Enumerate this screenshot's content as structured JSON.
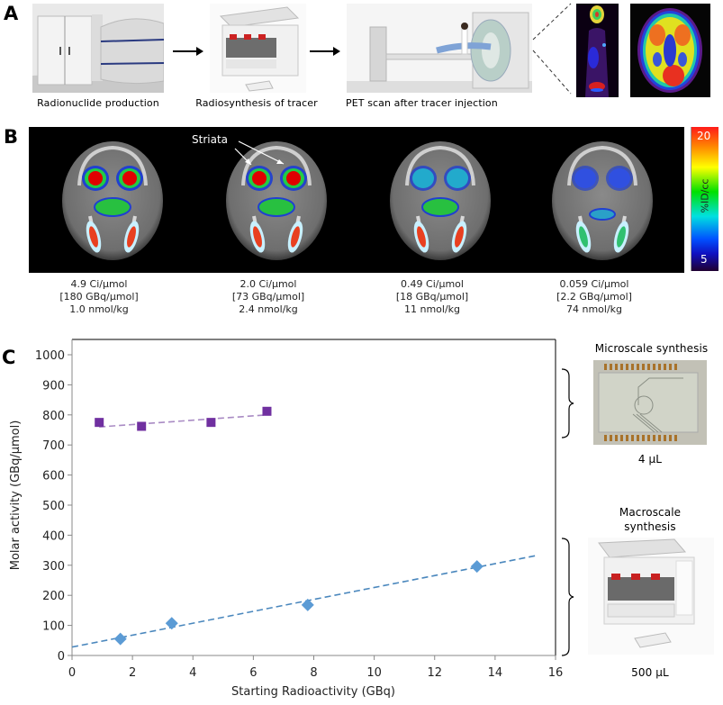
{
  "panel_a": {
    "letter": "A",
    "captions": [
      "Radionuclide production",
      "Radiosynthesis of tracer",
      "PET scan after tracer injection"
    ],
    "icons": [
      "cyclotron-photo",
      "synthesizer-photo",
      "pet-scanner-photo",
      "whole-body-pet-image",
      "brain-pet-image"
    ]
  },
  "panel_b": {
    "letter": "B",
    "annotation": "Striata",
    "colorbar": {
      "max_label": "20",
      "min_label": "5",
      "unit_label": "%ID/cc"
    },
    "scans": [
      {
        "molar_ci": "4.9 Ci/μmol",
        "molar_gbq": "[180 GBq/μmol]",
        "dose": "1.0 nmol/kg",
        "intensity": 1.0
      },
      {
        "molar_ci": "2.0 Ci/μmol",
        "molar_gbq": "[73 GBq/μmol]",
        "dose": "2.4 nmol/kg",
        "intensity": 0.85
      },
      {
        "molar_ci": "0.49 Ci/μmol",
        "molar_gbq": "[18 GBq/μmol]",
        "dose": "11 nmol/kg",
        "intensity": 0.5
      },
      {
        "molar_ci": "0.059 Ci/μmol",
        "molar_gbq": "[2.2 GBq/μmol]",
        "dose": "74 nmol/kg",
        "intensity": 0.2
      }
    ]
  },
  "panel_c": {
    "letter": "C",
    "micro_label": "Microscale synthesis",
    "micro_volume": "4 μL",
    "macro_label_line1": "Macroscale",
    "macro_label_line2": "synthesis",
    "macro_volume": "500 μL"
  },
  "chart_data": {
    "type": "scatter",
    "title": "",
    "xlabel": "Starting Radioactivity (GBq)",
    "ylabel": "Molar activity (GBq/μmol)",
    "xlim": [
      0,
      16
    ],
    "ylim": [
      0,
      1000
    ],
    "xticks": [
      "0",
      "2",
      "4",
      "6",
      "8",
      "10",
      "12",
      "14",
      "16"
    ],
    "yticks": [
      "0",
      "100",
      "200",
      "300",
      "400",
      "500",
      "600",
      "700",
      "800",
      "900",
      "1000"
    ],
    "grid": false,
    "series": [
      {
        "name": "Microscale synthesis",
        "marker": "square",
        "color": "#7030a0",
        "trend_color": "#a98bc4",
        "x": [
          0.9,
          2.3,
          4.6,
          6.45
        ],
        "y": [
          775,
          762,
          775,
          812
        ],
        "trendline": {
          "x": [
            0.9,
            6.45
          ],
          "y": [
            760,
            800
          ]
        }
      },
      {
        "name": "Macroscale synthesis",
        "marker": "diamond",
        "color": "#5b9bd5",
        "trend_color": "#4a87bd",
        "x": [
          1.6,
          3.3,
          7.8,
          13.4
        ],
        "y": [
          55,
          107,
          168,
          296
        ],
        "trendline": {
          "x": [
            0,
            15.4
          ],
          "y": [
            28,
            333
          ]
        }
      }
    ]
  }
}
